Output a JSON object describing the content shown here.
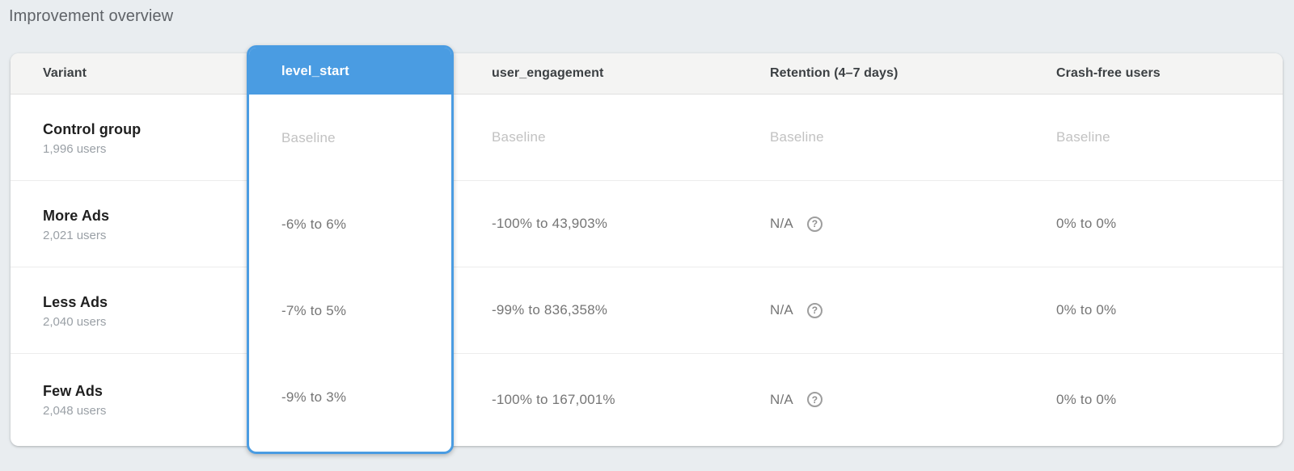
{
  "title": "Improvement overview",
  "colors": {
    "accent_blue": "#4a9ce2",
    "page_background": "#e9edf0",
    "header_background": "#f4f4f3"
  },
  "table": {
    "header": {
      "variant": "Variant",
      "user_engagement": "user_engagement",
      "retention": "Retention (4–7 days)",
      "crash_free": "Crash-free users"
    },
    "selected_column": {
      "label": "level_start",
      "values": [
        "Baseline",
        "-6% to 6%",
        "-7% to 5%",
        "-9% to 3%"
      ]
    },
    "rows": [
      {
        "variant": "Control group",
        "users": "1,996 users",
        "user_engagement": "Baseline",
        "retention": "Baseline",
        "crash_free": "Baseline"
      },
      {
        "variant": "More Ads",
        "users": "2,021 users",
        "user_engagement": "-100% to 43,903%",
        "retention": "N/A",
        "crash_free": "0% to 0%"
      },
      {
        "variant": "Less Ads",
        "users": "2,040 users",
        "user_engagement": "-99% to 836,358%",
        "retention": "N/A",
        "crash_free": "0% to 0%"
      },
      {
        "variant": "Few Ads",
        "users": "2,048 users",
        "user_engagement": "-100% to 167,001%",
        "retention": "N/A",
        "crash_free": "0% to 0%"
      }
    ]
  },
  "icons": {
    "help_icon": "?"
  }
}
